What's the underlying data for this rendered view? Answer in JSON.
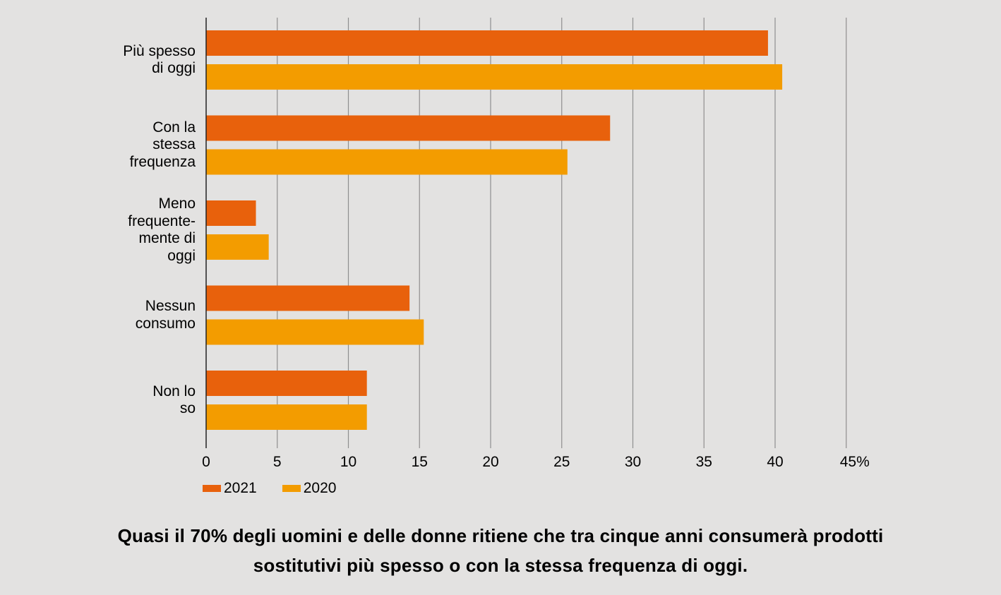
{
  "chart_data": {
    "type": "bar",
    "orientation": "horizontal",
    "categories": [
      "Più spesso\ndi oggi",
      "Con la\nstessa\nfrequenza",
      "Meno\nfrequente-\nmente di\noggi",
      "Nessun\nconsumo",
      "Non lo\nso"
    ],
    "series": [
      {
        "name": "2021",
        "color": "#e8610c",
        "values": [
          39.5,
          28.4,
          3.5,
          14.3,
          11.3
        ]
      },
      {
        "name": "2020",
        "color": "#f39c00",
        "values": [
          40.5,
          25.4,
          4.4,
          15.3,
          11.3
        ]
      }
    ],
    "xlim": [
      0,
      45
    ],
    "ticks": [
      "0",
      "5",
      "10",
      "15",
      "20",
      "25",
      "30",
      "35",
      "40",
      "45%"
    ],
    "grid": true,
    "legend_position": "bottom-left"
  },
  "caption": "Quasi il 70% degli uomini e delle donne ritiene che tra cinque anni consumerà prodotti\nsostitutivi più spesso o con la stessa frequenza di oggi."
}
